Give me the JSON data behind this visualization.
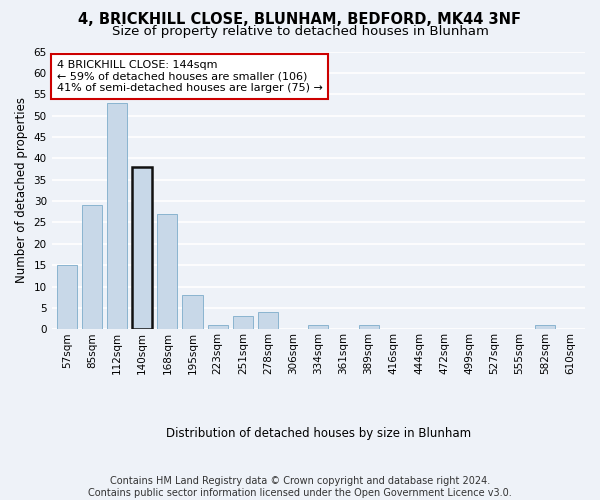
{
  "title_line1": "4, BRICKHILL CLOSE, BLUNHAM, BEDFORD, MK44 3NF",
  "title_line2": "Size of property relative to detached houses in Blunham",
  "xlabel": "Distribution of detached houses by size in Blunham",
  "ylabel": "Number of detached properties",
  "categories": [
    "57sqm",
    "85sqm",
    "112sqm",
    "140sqm",
    "168sqm",
    "195sqm",
    "223sqm",
    "251sqm",
    "278sqm",
    "306sqm",
    "334sqm",
    "361sqm",
    "389sqm",
    "416sqm",
    "444sqm",
    "472sqm",
    "499sqm",
    "527sqm",
    "555sqm",
    "582sqm",
    "610sqm"
  ],
  "values": [
    15,
    29,
    53,
    38,
    27,
    8,
    1,
    3,
    4,
    0,
    1,
    0,
    1,
    0,
    0,
    0,
    0,
    0,
    0,
    1,
    0
  ],
  "bar_color": "#c8d8e8",
  "bar_edgecolor": "#8ab4d0",
  "highlight_bar_index": 3,
  "highlight_bar_edgecolor": "#111111",
  "ylim": [
    0,
    65
  ],
  "yticks": [
    0,
    5,
    10,
    15,
    20,
    25,
    30,
    35,
    40,
    45,
    50,
    55,
    60,
    65
  ],
  "annotation_text": "4 BRICKHILL CLOSE: 144sqm\n← 59% of detached houses are smaller (106)\n41% of semi-detached houses are larger (75) →",
  "annotation_box_facecolor": "#ffffff",
  "annotation_box_edgecolor": "#cc0000",
  "footer_line1": "Contains HM Land Registry data © Crown copyright and database right 2024.",
  "footer_line2": "Contains public sector information licensed under the Open Government Licence v3.0.",
  "background_color": "#eef2f8",
  "plot_background_color": "#eef2f8",
  "grid_color": "#ffffff",
  "title_fontsize": 10.5,
  "subtitle_fontsize": 9.5,
  "axis_label_fontsize": 8.5,
  "tick_fontsize": 7.5,
  "annotation_fontsize": 8,
  "footer_fontsize": 7
}
